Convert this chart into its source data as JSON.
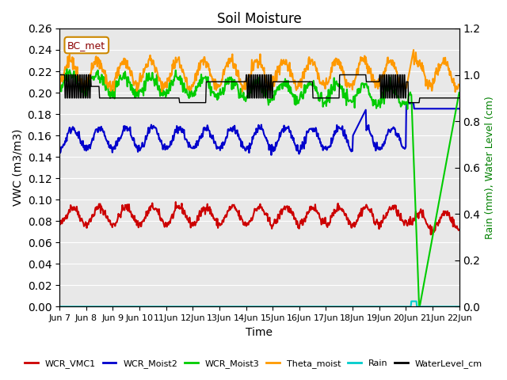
{
  "title": "Soil Moisture",
  "xlabel": "Time",
  "ylabel_left": "VWC (m3/m3)",
  "ylabel_right": "Rain (mm), Water Level (cm)",
  "ylim_left": [
    0.0,
    0.26
  ],
  "ylim_right": [
    0.0,
    1.2
  ],
  "yticks_left": [
    0.0,
    0.02,
    0.04,
    0.06,
    0.08,
    0.1,
    0.12,
    0.14,
    0.16,
    0.18,
    0.2,
    0.22,
    0.24,
    0.26
  ],
  "yticks_right": [
    0.0,
    0.2,
    0.4,
    0.6,
    0.8,
    1.0,
    1.2
  ],
  "background_color": "#e8e8e8",
  "annotation_text": "BC_met",
  "annotation_color": "#8b0000",
  "series": {
    "WCR_VMC1": {
      "color": "#cc0000",
      "lw": 1.5
    },
    "WCR_Moist2": {
      "color": "#0000cc",
      "lw": 1.5
    },
    "WCR_Moist3": {
      "color": "#00cc00",
      "lw": 1.5
    },
    "Theta_moist": {
      "color": "#ff9900",
      "lw": 1.5
    },
    "Rain": {
      "color": "#00cccc",
      "lw": 1.5
    },
    "WaterLevel_cm": {
      "color": "#000000",
      "lw": 1.0
    }
  },
  "legend_entries": [
    "WCR_VMC1",
    "WCR_Moist2",
    "WCR_Moist3",
    "Theta_moist",
    "Rain",
    "WaterLevel_cm"
  ],
  "legend_colors": [
    "#cc0000",
    "#0000cc",
    "#00cc00",
    "#ff9900",
    "#00cccc",
    "#000000"
  ]
}
